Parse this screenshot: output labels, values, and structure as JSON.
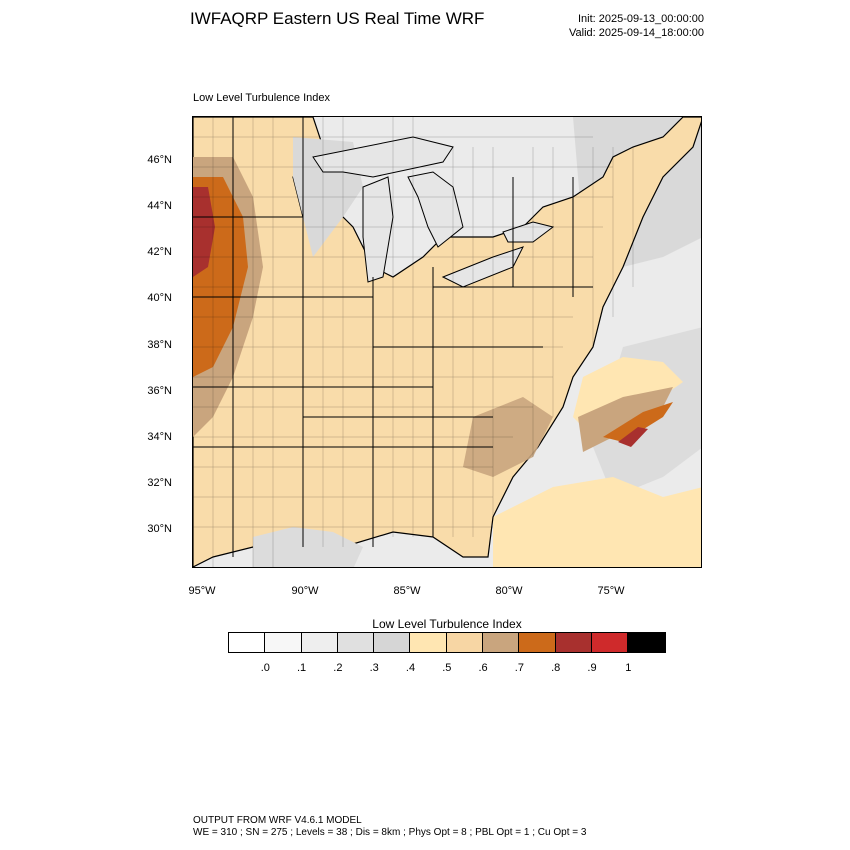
{
  "header": {
    "title": "IWFAQRP Eastern US Real Time WRF",
    "init": "Init: 2025-09-13_00:00:00",
    "valid": "Valid: 2025-09-14_18:00:00"
  },
  "panel": {
    "subtitle": "Low Level Turbulence Index",
    "lat_labels": [
      "46°N",
      "44°N",
      "42°N",
      "40°N",
      "38°N",
      "36°N",
      "34°N",
      "32°N",
      "30°N"
    ],
    "lon_labels": [
      "95°W",
      "90°W",
      "85°W",
      "80°W",
      "75°W"
    ]
  },
  "colorbar": {
    "title": "Low Level Turbulence Index",
    "labels": [
      ".0",
      ".1",
      ".2",
      ".3",
      ".4",
      ".5",
      ".6",
      ".7",
      ".8",
      ".9",
      "1"
    ],
    "colors": [
      "#ffffff",
      "#f7f7f7",
      "#eeeeee",
      "#e0e0e0",
      "#d6d6d6",
      "#ffe6b2",
      "#f7d6a4",
      "#c9a57e",
      "#cc6a1a",
      "#a8302e",
      "#cf2a2b",
      "#000000"
    ]
  },
  "map_colors": {
    "land_main": "#f9dcaa",
    "ocean_low": "#ebebeb",
    "ocean_mid": "#d9d9d9",
    "lakes": "#e6e6e6",
    "tan": "#c9a57e",
    "orange": "#cc6a1a",
    "red": "#a8302e"
  },
  "footer": {
    "line1": "OUTPUT FROM WRF V4.6.1 MODEL",
    "line2": "WE = 310 ; SN = 275 ; Levels = 38 ; Dis = 8km ; Phys Opt = 8 ; PBL Opt = 1 ; Cu Opt = 3"
  }
}
